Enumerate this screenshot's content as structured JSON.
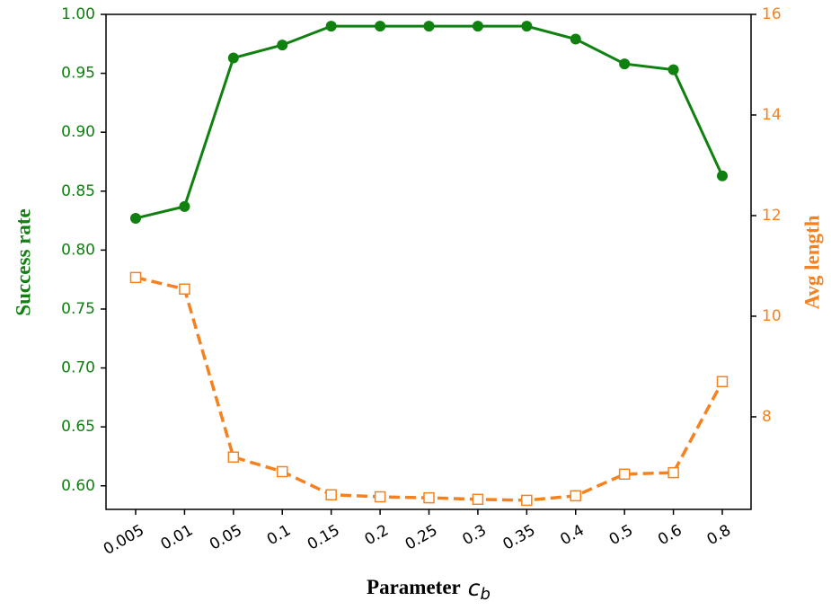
{
  "chart_data": {
    "type": "line",
    "categories": [
      "0.005",
      "0.01",
      "0.05",
      "0.1",
      "0.15",
      "0.2",
      "0.25",
      "0.3",
      "0.35",
      "0.4",
      "0.5",
      "0.6",
      "0.8"
    ],
    "series": [
      {
        "name": "Success rate",
        "color": "#108010",
        "axis": "y",
        "marker": "circle",
        "linestyle": "solid",
        "values": [
          0.827,
          0.837,
          0.963,
          0.974,
          0.99,
          0.99,
          0.99,
          0.99,
          0.99,
          0.979,
          0.958,
          0.953,
          0.863
        ]
      },
      {
        "name": "Avg length",
        "color": "#f5821f",
        "axis": "y2",
        "marker": "square",
        "linestyle": "dashed",
        "values": [
          10.77,
          10.54,
          7.2,
          6.91,
          6.45,
          6.41,
          6.39,
          6.36,
          6.34,
          6.43,
          6.86,
          6.89,
          8.7
        ]
      }
    ],
    "ylabel": "Success rate",
    "y2label": "Avg length",
    "xlabel": {
      "text": "Parameter",
      "symbol": "c",
      "subscript": "b"
    },
    "ylim": [
      0.58,
      1.0
    ],
    "yticks": [
      {
        "value": 0.6,
        "label": "0.60"
      },
      0.65,
      {
        "value": 0.7,
        "label": "0.70"
      },
      0.75,
      {
        "value": 0.8,
        "label": "0.80"
      },
      0.85,
      {
        "value": 0.9,
        "label": "0.90"
      },
      0.95,
      {
        "value": 1.0,
        "label": "1.00"
      }
    ],
    "y2lim": [
      6.16,
      16
    ],
    "y2ticks": [
      8,
      10,
      12,
      14,
      16
    ]
  }
}
